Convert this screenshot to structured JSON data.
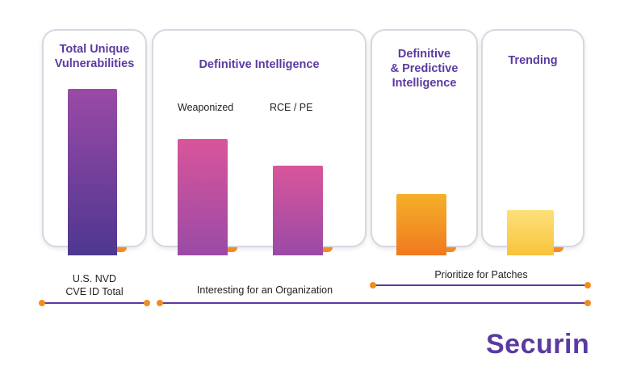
{
  "chart_data": {
    "type": "bar",
    "categories": [
      "Total Unique Vulnerabilities",
      "Weaponized",
      "RCE / PE",
      "Definitive & Predictive Intelligence",
      "Trending"
    ],
    "values": [
      100,
      70,
      54,
      37,
      27
    ],
    "panels": {
      "total_title_1": "Total Unique",
      "total_title_2": "Vulnerabilities",
      "definitive_title": "Definitive Intelligence",
      "weaponized_label": "Weaponized",
      "rce_label": "RCE / PE",
      "predictive_title_1": "Definitive",
      "predictive_title_2": "& Predictive",
      "predictive_title_3": "Intelligence",
      "trending_title": "Trending"
    }
  },
  "bottom": {
    "nvd_line1": "U.S. NVD",
    "nvd_line2": "CVE ID Total",
    "interesting": "Interesting for an Organization",
    "prioritize": "Prioritize for Patches"
  },
  "brand": {
    "logo": "Securin"
  },
  "colors": {
    "purple": "#5b3aa0",
    "orange": "#f28c1e",
    "pink": "#d4559c",
    "yellow": "#f9c843"
  }
}
